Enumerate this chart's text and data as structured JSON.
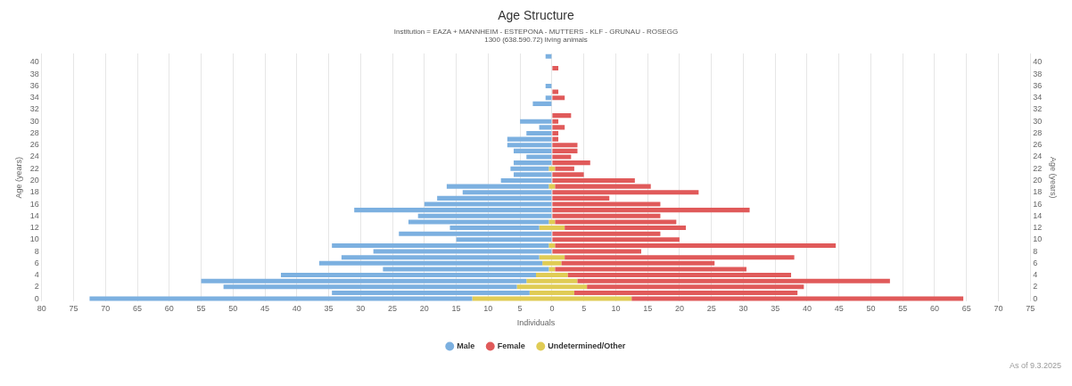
{
  "chart_data": {
    "type": "bar",
    "orientation": "horizontal",
    "title": "Age Structure",
    "subtitle": "Institution = EAZA + MANNHEIM - ESTEPONA - MUTTERS - KLF - GRUNAU - ROSEGG\n1300 (638.590.72) living animals",
    "xlabel": "Individuals",
    "ylabel": "Age (years)",
    "y2label": "Age (years)",
    "categories": [
      null,
      "40",
      null,
      "38",
      null,
      "36",
      null,
      "34",
      null,
      "32",
      null,
      "30",
      null,
      "28",
      null,
      "26",
      null,
      "24",
      null,
      "22",
      null,
      "20",
      null,
      "18",
      null,
      "16",
      null,
      "14",
      null,
      "12",
      null,
      "10",
      null,
      "8",
      null,
      "6",
      null,
      "4",
      null,
      "2",
      null,
      "0"
    ],
    "y2_categories": [
      null,
      "40",
      null,
      "38",
      null,
      "36",
      null,
      "34",
      null,
      "32",
      null,
      "30",
      null,
      "28",
      null,
      "26",
      null,
      "24",
      null,
      "22",
      null,
      "20",
      null,
      "18",
      null,
      "16",
      null,
      "14",
      null,
      "12",
      null,
      "10",
      null,
      "8",
      null,
      "6",
      null,
      "4",
      null,
      "2",
      null,
      "0"
    ],
    "series": [
      {
        "name": "Male",
        "color": "#7cb0e0",
        "values": [
          -1,
          null,
          null,
          null,
          null,
          -1,
          null,
          -1,
          -3,
          null,
          null,
          -5,
          -2,
          -4,
          -7,
          -7,
          -6,
          -4,
          -6,
          -6,
          -6,
          -8,
          -16,
          -14,
          -18,
          -20,
          -31,
          -21,
          -22,
          -14,
          -24,
          -15,
          -34,
          -28,
          -31,
          -35,
          -26,
          -40,
          -51,
          -46,
          -31,
          -60
        ],
        "base": [
          0,
          null,
          null,
          null,
          null,
          0,
          null,
          0,
          0,
          null,
          null,
          0,
          0,
          0,
          0,
          0,
          0,
          0,
          0,
          -0.5,
          0,
          0,
          -0.5,
          0,
          0,
          0,
          0,
          0,
          -0.5,
          -2,
          0,
          0,
          -0.5,
          0,
          -2,
          -1.5,
          -0.5,
          -2.5,
          -4,
          -5.5,
          -3.5,
          -12.5
        ]
      },
      {
        "name": "Female",
        "color": "#e05a5a",
        "values": [
          null,
          null,
          1,
          null,
          null,
          null,
          1,
          2,
          null,
          null,
          3,
          1,
          2,
          1,
          1,
          4,
          4,
          3,
          6,
          3,
          5,
          13,
          15,
          23,
          9,
          17,
          31,
          17,
          19,
          19,
          17,
          20,
          44,
          14,
          36,
          24,
          30,
          35,
          49,
          34,
          35,
          52
        ],
        "base": [
          null,
          null,
          0,
          null,
          null,
          null,
          0,
          0,
          null,
          null,
          0,
          0,
          0,
          0,
          0,
          0,
          0,
          0,
          0,
          0.5,
          0,
          0,
          0.5,
          0,
          0,
          0,
          0,
          0,
          0.5,
          2,
          0,
          0,
          0.5,
          0,
          2,
          1.5,
          0.5,
          2.5,
          4,
          5.5,
          3.5,
          12.5
        ]
      },
      {
        "name": "Undetermined/Other",
        "color": "#e0cc55",
        "values": [
          null,
          null,
          null,
          null,
          null,
          null,
          null,
          null,
          null,
          null,
          null,
          null,
          null,
          null,
          null,
          null,
          null,
          null,
          null,
          1,
          null,
          null,
          1,
          null,
          null,
          null,
          null,
          null,
          1,
          4,
          null,
          null,
          1,
          null,
          4,
          3,
          1,
          5,
          8,
          11,
          7,
          25
        ],
        "base": [
          null,
          null,
          null,
          null,
          null,
          null,
          null,
          null,
          null,
          null,
          null,
          null,
          null,
          null,
          null,
          null,
          null,
          null,
          null,
          -0.5,
          null,
          null,
          -0.5,
          null,
          null,
          null,
          null,
          null,
          -0.5,
          -2,
          null,
          null,
          -0.5,
          null,
          -2,
          -1.5,
          -0.5,
          -2.5,
          -4,
          -5.5,
          -3.5,
          -12.5
        ]
      }
    ],
    "xlim": [
      -80,
      75
    ],
    "xticks": [
      {
        "value": -80,
        "label": "80"
      },
      {
        "value": -75,
        "label": "75"
      },
      {
        "value": -70,
        "label": "70"
      },
      {
        "value": -65,
        "label": "65"
      },
      {
        "value": -60,
        "label": "60"
      },
      {
        "value": -55,
        "label": "55"
      },
      {
        "value": -50,
        "label": "50"
      },
      {
        "value": -45,
        "label": "45"
      },
      {
        "value": -40,
        "label": "40"
      },
      {
        "value": -35,
        "label": "35"
      },
      {
        "value": -30,
        "label": "30"
      },
      {
        "value": -25,
        "label": "25"
      },
      {
        "value": -20,
        "label": "20"
      },
      {
        "value": -15,
        "label": "15"
      },
      {
        "value": -10,
        "label": "10"
      },
      {
        "value": -5,
        "label": "5"
      },
      0,
      5,
      10,
      15,
      20,
      25,
      30,
      35,
      40,
      45,
      50,
      55,
      60,
      65,
      70,
      75
    ],
    "grid": "x",
    "legend": "bottom",
    "annotations": [
      "As of 9.3.2025"
    ]
  }
}
